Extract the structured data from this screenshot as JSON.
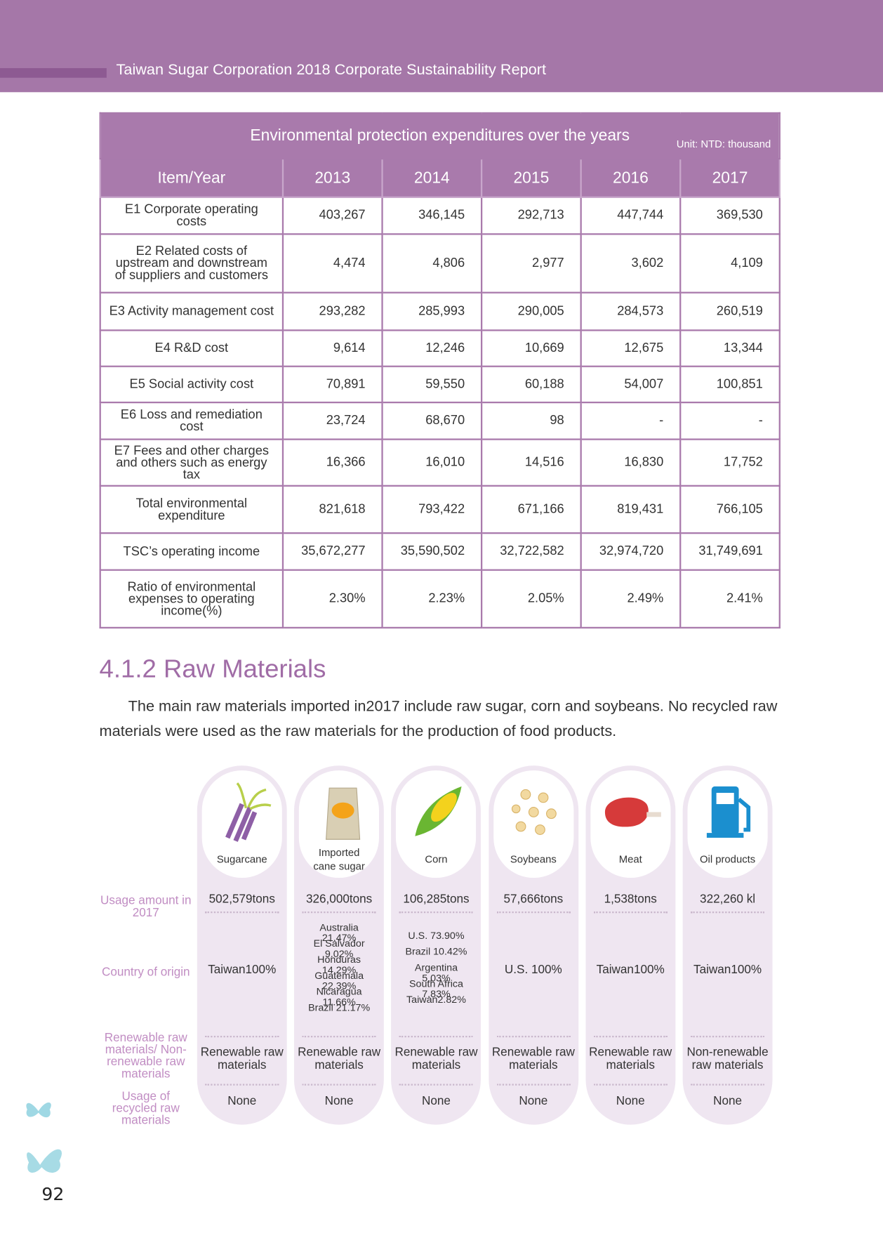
{
  "header": {
    "title": "Taiwan Sugar Corporation 2018 Corporate Sustainability Report"
  },
  "table": {
    "title": "Environmental protection expenditures over the years",
    "unit": "Unit: NTD: thousand",
    "columns": [
      "Item/Year",
      "2013",
      "2014",
      "2015",
      "2016",
      "2017"
    ],
    "rows": [
      [
        "E1 Corporate operating costs",
        "403,267",
        "346,145",
        "292,713",
        "447,744",
        "369,530"
      ],
      [
        "E2 Related costs of upstream and downstream of suppliers and customers",
        "4,474",
        "4,806",
        "2,977",
        "3,602",
        "4,109"
      ],
      [
        "E3 Activity management cost",
        "293,282",
        "285,993",
        "290,005",
        "284,573",
        "260,519"
      ],
      [
        "E4 R&D cost",
        "9,614",
        "12,246",
        "10,669",
        "12,675",
        "13,344"
      ],
      [
        "E5 Social activity cost",
        "70,891",
        "59,550",
        "60,188",
        "54,007",
        "100,851"
      ],
      [
        "E6 Loss and remediation cost",
        "23,724",
        "68,670",
        "98",
        "-",
        "-"
      ],
      [
        "E7 Fees and other charges and others such as energy tax",
        "16,366",
        "16,010",
        "14,516",
        "16,830",
        "17,752"
      ],
      [
        "Total environmental expenditure",
        "821,618",
        "793,422",
        "671,166",
        "819,431",
        "766,105"
      ],
      [
        "TSC’s operating income",
        "35,672,277",
        "35,590,502",
        "32,722,582",
        "32,974,720",
        "31,749,691"
      ],
      [
        "Ratio of environmental expenses to operating income(%)",
        "2.30%",
        "2.23%",
        "2.05%",
        "2.49%",
        "2.41%"
      ]
    ]
  },
  "section": {
    "heading": "4.1.2 Raw Materials",
    "text": "The main raw materials imported in2017 include raw sugar, corn and soybeans. No recycled raw materials were used as the raw materials for the production of food products."
  },
  "materials": {
    "row_labels": [
      "Usage amount in 2017",
      "Country of origin",
      "Renewable raw materials/ Non-renewable raw materials",
      "Usage of recycled raw materials"
    ],
    "items": [
      {
        "name": "Sugarcane",
        "usage": "502,579tons",
        "origin": [
          "Taiwan100%"
        ],
        "renewable": "Renewable raw materials",
        "recycled": "None"
      },
      {
        "name": "Imported cane sugar",
        "usage": "326,000tons",
        "origin": [
          "Australia 21.47%",
          "El Salvador 9.02%",
          "Honduras 14.29%",
          "Guatemala 22.39%",
          "Nicaragua 11.66%",
          "Brazil 21.17%"
        ],
        "renewable": "Renewable raw materials",
        "recycled": "None"
      },
      {
        "name": "Corn",
        "usage": "106,285tons",
        "origin": [
          "U.S. 73.90%",
          "Brazil 10.42%",
          "Argentina 5.03%",
          "South Africa 7.83%",
          "Taiwan2.82%"
        ],
        "renewable": "Renewable raw materials",
        "recycled": "None"
      },
      {
        "name": "Soybeans",
        "usage": "57,666tons",
        "origin": [
          "U.S. 100%"
        ],
        "renewable": "Renewable raw materials",
        "recycled": "None"
      },
      {
        "name": "Meat",
        "usage": "1,538tons",
        "origin": [
          "Taiwan100%"
        ],
        "renewable": "Renewable raw materials",
        "recycled": "None"
      },
      {
        "name": "Oil products",
        "usage": "322,260 kl",
        "origin": [
          "Taiwan100%"
        ],
        "renewable": "Non-renewable raw materials",
        "recycled": "None"
      }
    ]
  },
  "page_number": "92"
}
